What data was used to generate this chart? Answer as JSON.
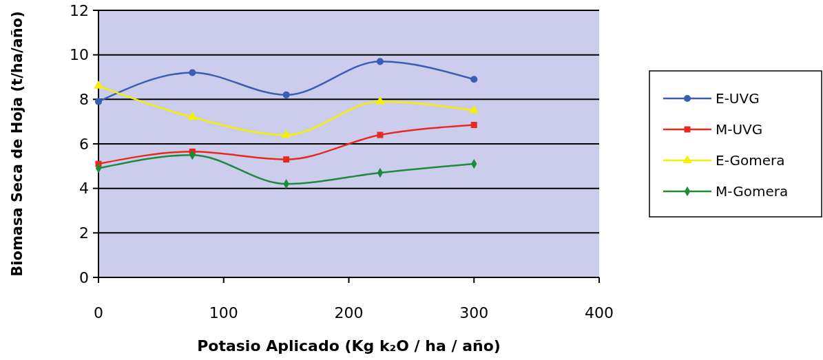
{
  "chart_data": {
    "type": "line",
    "xlabel": "Potasio Aplicado (Kg k₂O / ha / año)",
    "ylabel": "Biomasa Seca de Hoja (t/ha/año)",
    "x": [
      0,
      75,
      150,
      225,
      300
    ],
    "series": [
      {
        "name": "E-UVG",
        "color": "#3b5db5",
        "values": [
          7.9,
          9.2,
          8.2,
          9.7,
          8.9
        ],
        "marker": "circle"
      },
      {
        "name": "M-UVG",
        "color": "#e8291c",
        "values": [
          5.1,
          5.65,
          5.3,
          6.4,
          6.85
        ],
        "marker": "square"
      },
      {
        "name": "E-Gomera",
        "color": "#f2f200",
        "values": [
          8.6,
          7.2,
          6.4,
          7.9,
          7.5
        ],
        "marker": "triangle"
      },
      {
        "name": "M-Gomera",
        "color": "#1e8a3c",
        "values": [
          4.9,
          5.5,
          4.2,
          4.7,
          5.1
        ],
        "marker": "diamond"
      }
    ],
    "xlim": [
      0,
      400
    ],
    "xticks": [
      0,
      100,
      200,
      300,
      400
    ],
    "ylim": [
      0,
      12
    ],
    "yticks": [
      0,
      2,
      4,
      6,
      8,
      10,
      12
    ],
    "grid": "y",
    "legend": "right"
  }
}
